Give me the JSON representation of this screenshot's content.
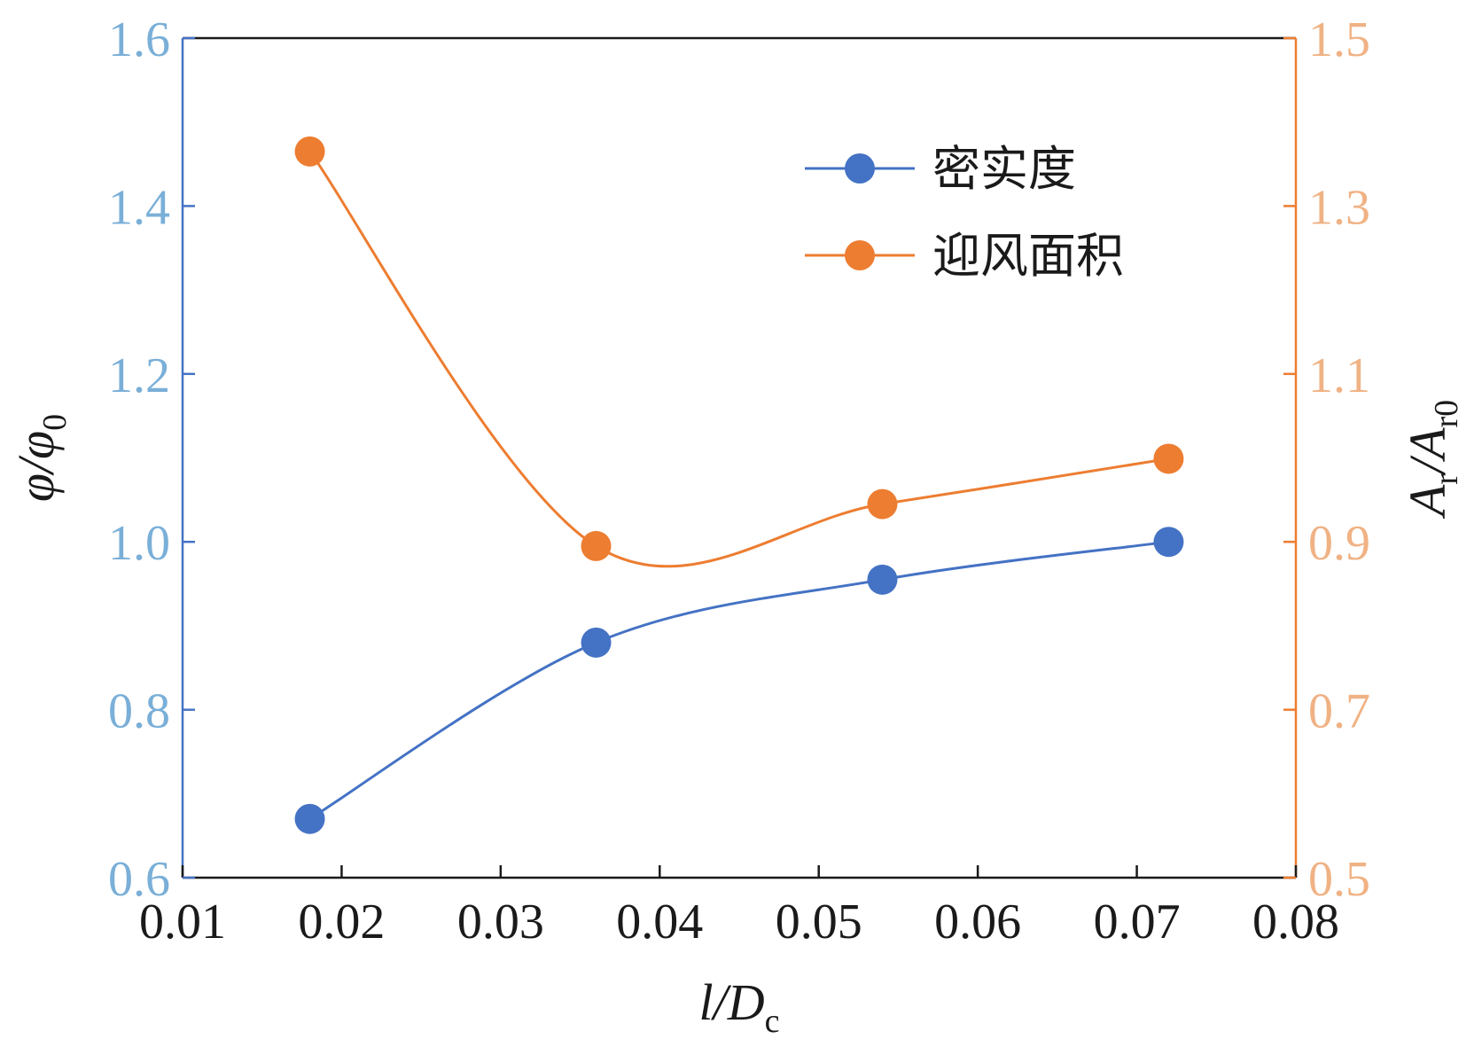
{
  "chart_data": {
    "type": "line",
    "x": [
      0.018,
      0.036,
      0.054,
      0.072
    ],
    "xlim": [
      0.01,
      0.08
    ],
    "xticks": [
      "0.01",
      "0.02",
      "0.03",
      "0.04",
      "0.05",
      "0.06",
      "0.07",
      "0.08"
    ],
    "xticks_values": [
      0.01,
      0.02,
      0.03,
      0.04,
      0.05,
      0.06,
      0.07,
      0.08
    ],
    "xlabel": {
      "main": "l/D",
      "sub": "c"
    },
    "y_left": {
      "label": {
        "main": "φ/φ",
        "sub": "0"
      },
      "lim": [
        0.6,
        1.6
      ],
      "ticks": [
        "0.6",
        "0.8",
        "1.0",
        "1.2",
        "1.4",
        "1.6"
      ],
      "ticks_values": [
        0.6,
        0.8,
        1.0,
        1.2,
        1.4,
        1.6
      ],
      "color": "#7aafd8"
    },
    "y_right": {
      "label": {
        "main": "A",
        "sub1": "r",
        "mid": "/A",
        "sub2": "r0"
      },
      "lim": [
        0.5,
        1.5
      ],
      "ticks": [
        "0.5",
        "0.7",
        "0.9",
        "1.1",
        "1.3",
        "1.5"
      ],
      "ticks_values": [
        0.5,
        0.7,
        0.9,
        1.1,
        1.3,
        1.5
      ],
      "color": "#f0b284"
    },
    "series": [
      {
        "name": "密实度",
        "axis": "left",
        "values": [
          0.67,
          0.88,
          0.955,
          1.0
        ],
        "color": "#4472c4"
      },
      {
        "name": "迎风面积",
        "axis": "right",
        "values": [
          1.365,
          0.895,
          0.945,
          0.999
        ],
        "color": "#ed7d31"
      }
    ],
    "legend_position": "top-right",
    "grid": false
  }
}
